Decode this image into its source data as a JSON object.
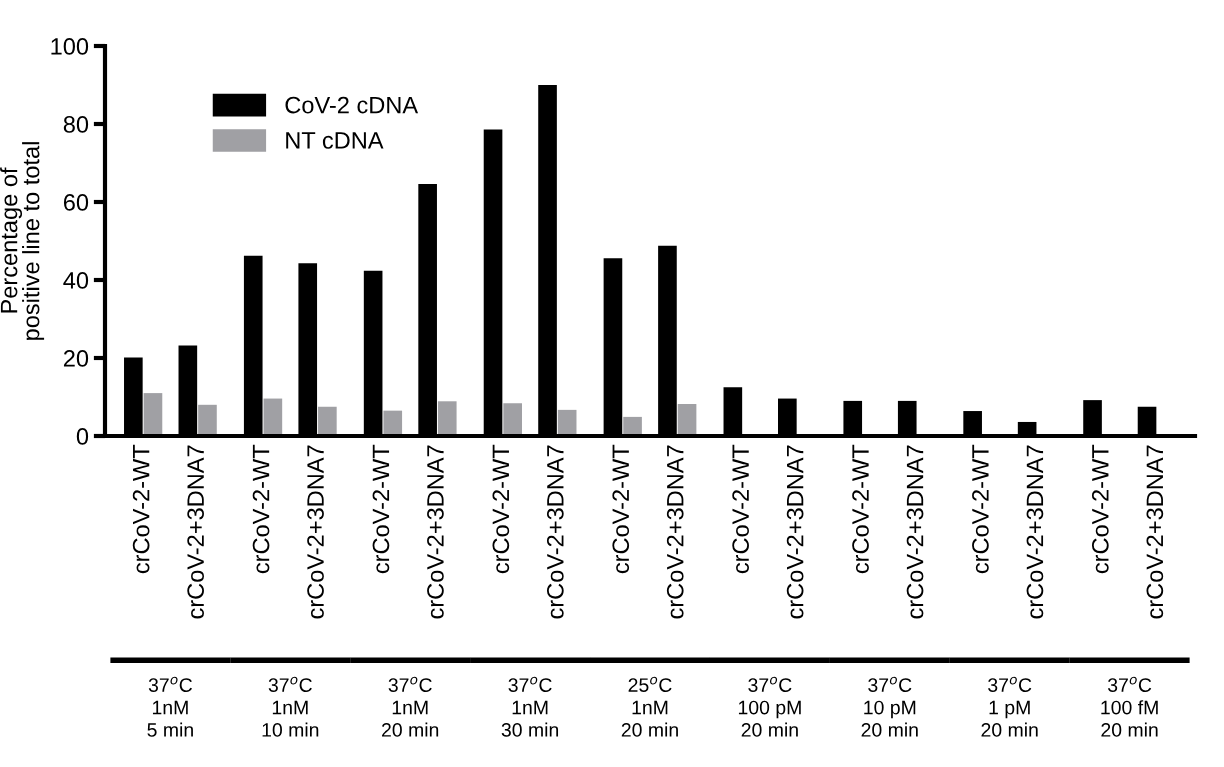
{
  "chart_data": {
    "type": "bar",
    "ylabel": "Percentage of\npositive line to total",
    "categories": [
      "crCoV-2-WT",
      "crCoV-2+3DNA7",
      "crCoV-2-WT",
      "crCoV-2+3DNA7",
      "crCoV-2-WT",
      "crCoV-2+3DNA7",
      "crCoV-2-WT",
      "crCoV-2+3DNA7",
      "crCoV-2-WT",
      "crCoV-2+3DNA7",
      "crCoV-2-WT",
      "crCoV-2+3DNA7",
      "crCoV-2-WT",
      "crCoV-2+3DNA7",
      "crCoV-2-WT",
      "crCoV-2+3DNA7",
      "crCoV-2-WT",
      "crCoV-2+3DNA7"
    ],
    "series": [
      {
        "name": "CoV-2 cDNA",
        "color": "#000000",
        "values": [
          20.1,
          23.2,
          46.2,
          44.3,
          42.4,
          64.6,
          78.6,
          90,
          45.6,
          48.8,
          12.5,
          9.6,
          9,
          9,
          6.4,
          3.6,
          9.2,
          7.5
        ]
      },
      {
        "name": "NT cDNA",
        "color": "#a0a0a4",
        "values": [
          11,
          8,
          9.6,
          7.5,
          6.5,
          8.9,
          8.4,
          6.7,
          4.9,
          8.2,
          null,
          null,
          null,
          null,
          null,
          null,
          null,
          null
        ]
      }
    ],
    "annotations": [
      "37$^{o}$C\n1nM\n5 min",
      "37$^{o}$C\n1nM\n10 min",
      "37$^{o}$C\n1nM\n20 min",
      "37$^{o}$C\n1nM\n30 min",
      "25$^{o}$C\n1nM\n20 min",
      "37$^{o}$C\n100 pM\n20 min",
      "37$^{o}$C\n10 pM\n20 min",
      "37$^{o}$C\n1 pM\n20 min",
      "37$^{o}$C\n100 fM\n20 min"
    ],
    "ylim": [
      0,
      100
    ],
    "yticks": [
      0,
      20,
      40,
      60,
      80,
      100
    ],
    "grid": false,
    "legend": "top left"
  }
}
